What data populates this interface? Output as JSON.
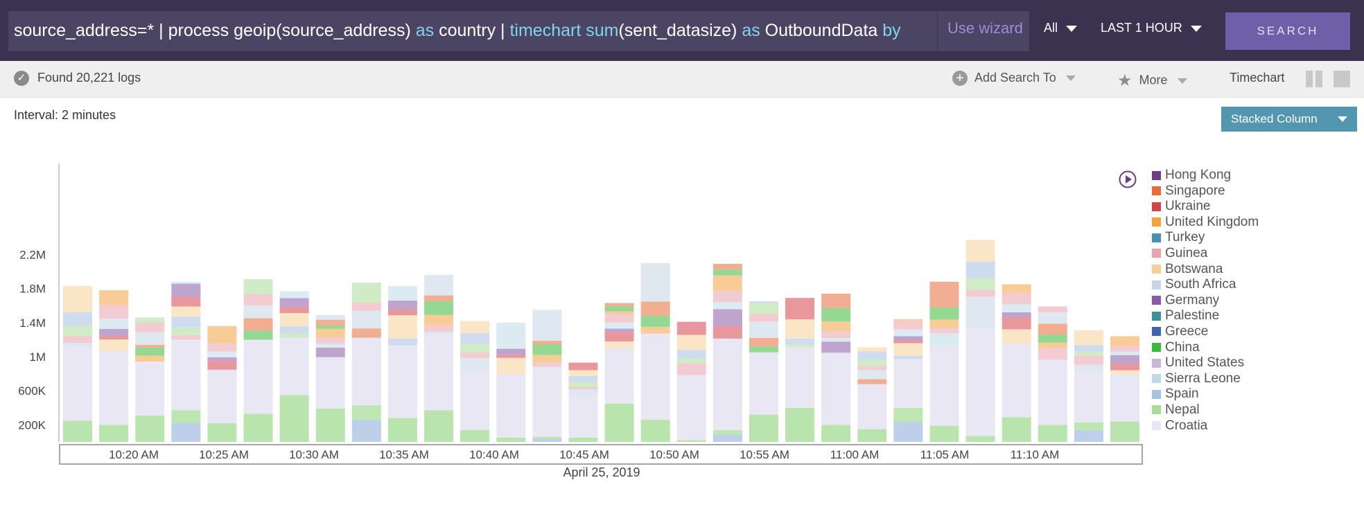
{
  "query": {
    "segments": [
      {
        "text": "source_address=* | process geoip(source_address) ",
        "kw": false
      },
      {
        "text": "as",
        "kw": true
      },
      {
        "text": " country | ",
        "kw": false
      },
      {
        "text": "timechart sum",
        "kw": true
      },
      {
        "text": "(sent_datasize) ",
        "kw": false
      },
      {
        "text": "as",
        "kw": true
      },
      {
        "text": " OutboundData ",
        "kw": false
      },
      {
        "text": "by",
        "kw": true
      }
    ],
    "wizard_label": "Use wizard",
    "repo_select": "All",
    "time_range": "LAST 1 HOUR",
    "search_label": "SEARCH"
  },
  "status": {
    "found_text": "Found 20,221 logs",
    "add_search_label": "Add Search To",
    "more_label": "More",
    "timechart_label": "Timechart"
  },
  "chart_header": {
    "interval_text": "Interval: 2 minutes",
    "chart_type_label": "Stacked Column"
  },
  "colors": {
    "topbar": "#3b3250",
    "accent": "#6e5fa8",
    "chart_type_button": "#5296b0"
  },
  "chart_data": {
    "type": "bar",
    "stacked": true,
    "bar_count": 30,
    "totals": [
      1830000,
      1780000,
      1460000,
      1880000,
      1360000,
      1910000,
      1770000,
      1490000,
      1870000,
      1830000,
      1960000,
      1420000,
      1400000,
      1550000,
      930000,
      1630000,
      2100000,
      1410000,
      2090000,
      1650000,
      1690000,
      1740000,
      1110000,
      1440000,
      1880000,
      2370000,
      1850000,
      1590000,
      1310000,
      1240000
    ],
    "base": [
      250000,
      200000,
      310000,
      370000,
      220000,
      330000,
      550000,
      390000,
      430000,
      280000,
      370000,
      140000,
      50000,
      60000,
      50000,
      450000,
      260000,
      20000,
      140000,
      320000,
      400000,
      200000,
      150000,
      400000,
      190000,
      70000,
      290000,
      200000,
      230000,
      240000
    ],
    "y_ticks": [
      "200K",
      "600K",
      "1M",
      "1.4M",
      "1.8M",
      "2.2M"
    ],
    "y_tick_values": [
      200000,
      600000,
      1000000,
      1400000,
      1800000,
      2200000
    ],
    "ylim": [
      0,
      2520000
    ],
    "x_ticks": [
      "10:20 AM",
      "10:25 AM",
      "10:30 AM",
      "10:35 AM",
      "10:40 AM",
      "10:45 AM",
      "10:50 AM",
      "10:55 AM",
      "11:00 AM",
      "11:05 AM",
      "11:10 AM"
    ],
    "xlabel": "April 25, 2019",
    "legend": [
      {
        "name": "Hong Kong",
        "color": "#6b3d84"
      },
      {
        "name": "Singapore",
        "color": "#e86b3a"
      },
      {
        "name": "Ukraine",
        "color": "#d6424a"
      },
      {
        "name": "United Kingdom",
        "color": "#f0a340"
      },
      {
        "name": "Turkey",
        "color": "#4b8fae"
      },
      {
        "name": "Guinea",
        "color": "#eaa3ad"
      },
      {
        "name": "Botswana",
        "color": "#f5cf97"
      },
      {
        "name": "South Africa",
        "color": "#c5d6e6"
      },
      {
        "name": "Germany",
        "color": "#8a5aa8"
      },
      {
        "name": "Palestine",
        "color": "#3f8e9a"
      },
      {
        "name": "Greece",
        "color": "#3e66b0"
      },
      {
        "name": "China",
        "color": "#3cb83c"
      },
      {
        "name": "United States",
        "color": "#c9b6d6"
      },
      {
        "name": "Sierra Leone",
        "color": "#bfd9e6"
      },
      {
        "name": "Spain",
        "color": "#a8c0e2"
      },
      {
        "name": "Nepal",
        "color": "#a8dd98"
      },
      {
        "name": "Croatia",
        "color": "#e8e6f2"
      }
    ],
    "legend_position": "right",
    "grid": false
  }
}
